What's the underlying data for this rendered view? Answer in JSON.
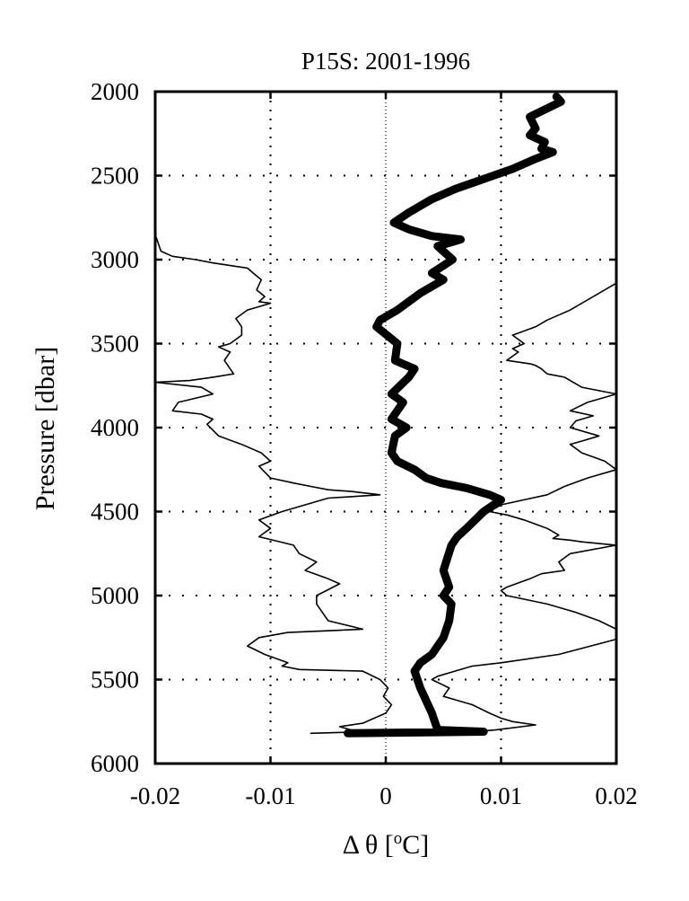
{
  "chart_data": {
    "type": "line",
    "title": "P15S: 2001-1996",
    "xlabel": "Δ θ [",
    "xlabel_sup": "o",
    "xlabel_unit": "C]",
    "ylabel": "Pressure [dbar]",
    "xlim": [
      -0.02,
      0.02
    ],
    "ylim": [
      2000,
      6000
    ],
    "y_reversed": true,
    "grid": "dotted",
    "x_ticks": [
      -0.02,
      -0.01,
      0,
      0.01,
      0.02
    ],
    "x_tick_labels": [
      "-0.02",
      "-0.01",
      "0",
      "0.01",
      "0.02"
    ],
    "y_ticks": [
      2000,
      2500,
      3000,
      3500,
      4000,
      4500,
      5000,
      5500,
      6000
    ],
    "y_tick_labels": [
      "2000",
      "2500",
      "3000",
      "3500",
      "4000",
      "4500",
      "5000",
      "5500",
      "6000"
    ],
    "series": [
      {
        "style": "thick",
        "x": [
          0.0148,
          0.0152,
          0.014,
          0.0125,
          0.013,
          0.0125,
          0.0138,
          0.0135,
          0.0145,
          0.013,
          0.011,
          0.0085,
          0.006,
          0.004,
          0.002,
          0.0007,
          0.002,
          0.004,
          0.0065,
          0.0045,
          0.0058,
          0.004,
          0.005,
          0.003,
          0.001,
          -0.0005,
          -0.0008,
          0.001,
          0.0008,
          0.0025,
          0.002,
          0.0005,
          0.0015,
          0.0005,
          0.0018,
          0.0008,
          0.0005,
          0.001,
          0.0025,
          0.0035,
          0.0048,
          0.007,
          0.009,
          0.01,
          0.0085,
          0.007,
          0.0062,
          0.0057,
          0.005,
          0.0055,
          0.005,
          0.0057,
          0.0055,
          0.005,
          0.004,
          0.003,
          0.0025,
          0.003,
          0.004,
          0.0045,
          0.0085,
          -0.0033
        ],
        "y": [
          2030,
          2060,
          2100,
          2150,
          2220,
          2260,
          2300,
          2340,
          2360,
          2400,
          2460,
          2520,
          2580,
          2640,
          2720,
          2780,
          2820,
          2860,
          2880,
          2920,
          3000,
          3080,
          3120,
          3200,
          3300,
          3360,
          3400,
          3500,
          3600,
          3650,
          3700,
          3800,
          3850,
          3950,
          4000,
          4050,
          4150,
          4200,
          4250,
          4300,
          4330,
          4360,
          4400,
          4430,
          4500,
          4600,
          4650,
          4700,
          4850,
          4950,
          5000,
          5050,
          5150,
          5250,
          5350,
          5400,
          5450,
          5550,
          5700,
          5800,
          5810,
          5820
        ]
      },
      {
        "style": "thin",
        "x": [
          -0.02,
          -0.0195,
          -0.0185,
          -0.0165,
          -0.015,
          -0.014,
          -0.012,
          -0.0115,
          -0.0108,
          -0.0112,
          -0.0105,
          -0.011,
          -0.01,
          -0.012,
          -0.013,
          -0.0125,
          -0.0125,
          -0.0135,
          -0.0145,
          -0.0135,
          -0.014,
          -0.0132,
          -0.015,
          -0.017,
          -0.02,
          -0.016,
          -0.015,
          -0.018,
          -0.0185,
          -0.016,
          -0.015,
          -0.0155,
          -0.0145,
          -0.0125,
          -0.0108,
          -0.01,
          -0.011,
          -0.01,
          -0.008,
          -0.0065,
          -0.005,
          -0.003,
          -0.0005,
          -0.005,
          -0.009,
          -0.011,
          -0.01,
          -0.011,
          -0.008,
          -0.0075,
          -0.006,
          -0.007,
          -0.005,
          -0.004,
          -0.006,
          -0.006,
          -0.005,
          -0.002,
          -0.0085,
          -0.011,
          -0.012,
          -0.0105,
          -0.0085,
          -0.009,
          -0.0075,
          -0.002,
          -0.0005,
          0.0002,
          -0.0002,
          0.0005,
          0.0,
          -0.001,
          -0.002,
          -0.004,
          -0.003,
          -0.0015,
          -0.0065
        ],
        "y": [
          2850,
          2950,
          2980,
          3000,
          3020,
          3030,
          3050,
          3080,
          3120,
          3180,
          3220,
          3250,
          3260,
          3300,
          3350,
          3400,
          3450,
          3500,
          3520,
          3550,
          3600,
          3680,
          3700,
          3720,
          3730,
          3760,
          3800,
          3850,
          3900,
          3920,
          3950,
          3980,
          4050,
          4100,
          4150,
          4200,
          4230,
          4300,
          4330,
          4350,
          4370,
          4380,
          4400,
          4420,
          4500,
          4550,
          4600,
          4650,
          4700,
          4750,
          4800,
          4850,
          4900,
          4930,
          5000,
          5050,
          5150,
          5200,
          5220,
          5250,
          5300,
          5350,
          5400,
          5420,
          5440,
          5450,
          5500,
          5550,
          5600,
          5650,
          5700,
          5730,
          5760,
          5780,
          5800,
          5810,
          5820
        ]
      },
      {
        "style": "thin",
        "x": [
          0.02,
          0.0185,
          0.017,
          0.016,
          0.015,
          0.014,
          0.013,
          0.011,
          0.012,
          0.011,
          0.0115,
          0.0105,
          0.0125,
          0.013,
          0.0135,
          0.014,
          0.0155,
          0.017,
          0.02,
          0.0175,
          0.016,
          0.018,
          0.0165,
          0.016,
          0.0185,
          0.017,
          0.016,
          0.017,
          0.019,
          0.02,
          0.0175,
          0.0155,
          0.014,
          0.012,
          0.01,
          0.009,
          0.0105,
          0.012,
          0.014,
          0.015,
          0.0145,
          0.016,
          0.017,
          0.02,
          0.016,
          0.015,
          0.0155,
          0.0135,
          0.0125,
          0.0105,
          0.01,
          0.0105,
          0.014,
          0.0165,
          0.0185,
          0.02,
          0.02,
          0.015,
          0.01,
          0.0075,
          0.006,
          0.0045,
          0.004,
          0.0055,
          0.005,
          0.0075,
          0.009,
          0.01,
          0.011,
          0.013,
          0.0095,
          0.006,
          0.007
        ],
        "y": [
          3140,
          3200,
          3260,
          3300,
          3330,
          3360,
          3400,
          3450,
          3500,
          3530,
          3550,
          3600,
          3620,
          3630,
          3650,
          3680,
          3700,
          3760,
          3800,
          3850,
          3900,
          3930,
          3960,
          4000,
          4050,
          4080,
          4100,
          4150,
          4200,
          4250,
          4300,
          4350,
          4400,
          4430,
          4460,
          4500,
          4520,
          4550,
          4600,
          4640,
          4660,
          4670,
          4680,
          4700,
          4750,
          4800,
          4850,
          4870,
          4900,
          4950,
          4970,
          5000,
          5050,
          5100,
          5150,
          5200,
          5260,
          5350,
          5400,
          5420,
          5450,
          5480,
          5500,
          5550,
          5600,
          5650,
          5700,
          5730,
          5750,
          5770,
          5800,
          5820,
          5830
        ]
      }
    ]
  }
}
